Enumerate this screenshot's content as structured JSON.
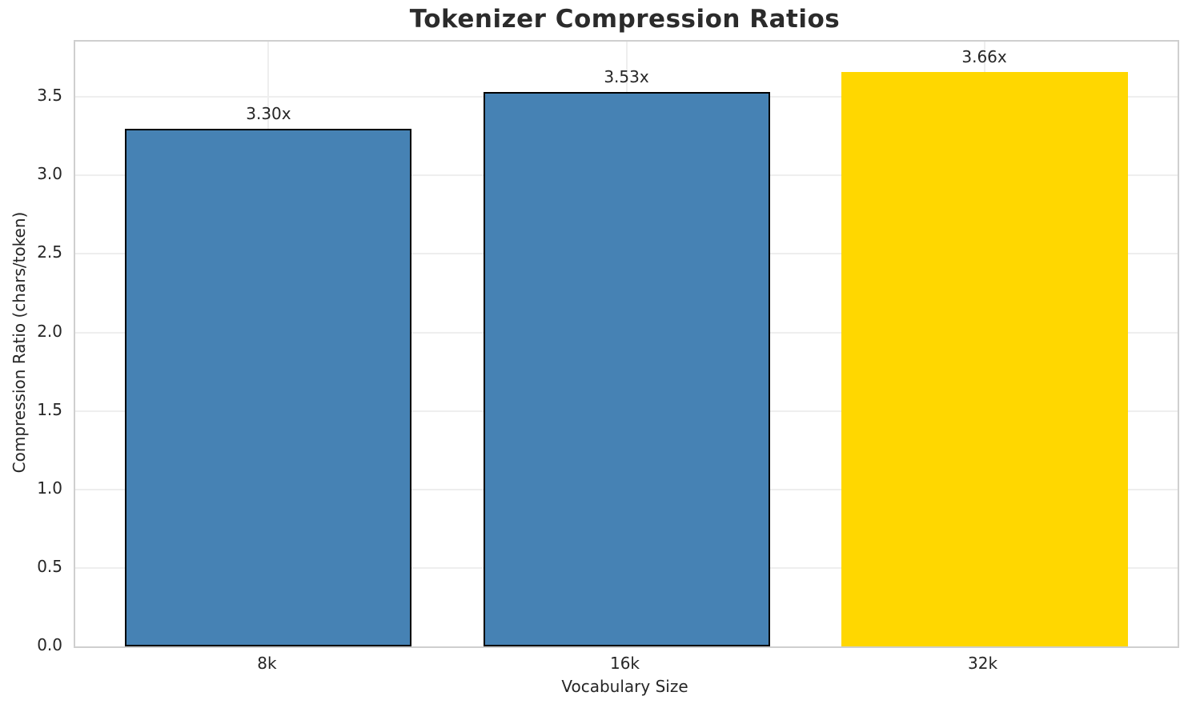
{
  "chart_data": {
    "type": "bar",
    "title": "Tokenizer Compression Ratios",
    "xlabel": "Vocabulary Size",
    "ylabel": "Compression Ratio (chars/token)",
    "categories": [
      "8k",
      "16k",
      "32k"
    ],
    "values": [
      3.3,
      3.53,
      3.66
    ],
    "bar_labels": [
      "3.30x",
      "3.53x",
      "3.66x"
    ],
    "bar_colors": [
      "#4682B4",
      "#4682B4",
      "#FFD700"
    ],
    "bar_edge_colors": [
      "#000000",
      "#000000",
      "none"
    ],
    "ylim": [
      0,
      3.853
    ],
    "ytick_labels": [
      "0.0",
      "0.5",
      "1.0",
      "1.5",
      "2.0",
      "2.5",
      "3.0",
      "3.5"
    ],
    "ytick_values": [
      0.0,
      0.5,
      1.0,
      1.5,
      2.0,
      2.5,
      3.0,
      3.5
    ],
    "grid": "on",
    "legend_position": "none",
    "colors": {
      "grid": "#eeeeee",
      "spine": "#cfcfcf",
      "text": "#262626",
      "title_text": "#2b2b2b",
      "background": "#ffffff"
    }
  }
}
